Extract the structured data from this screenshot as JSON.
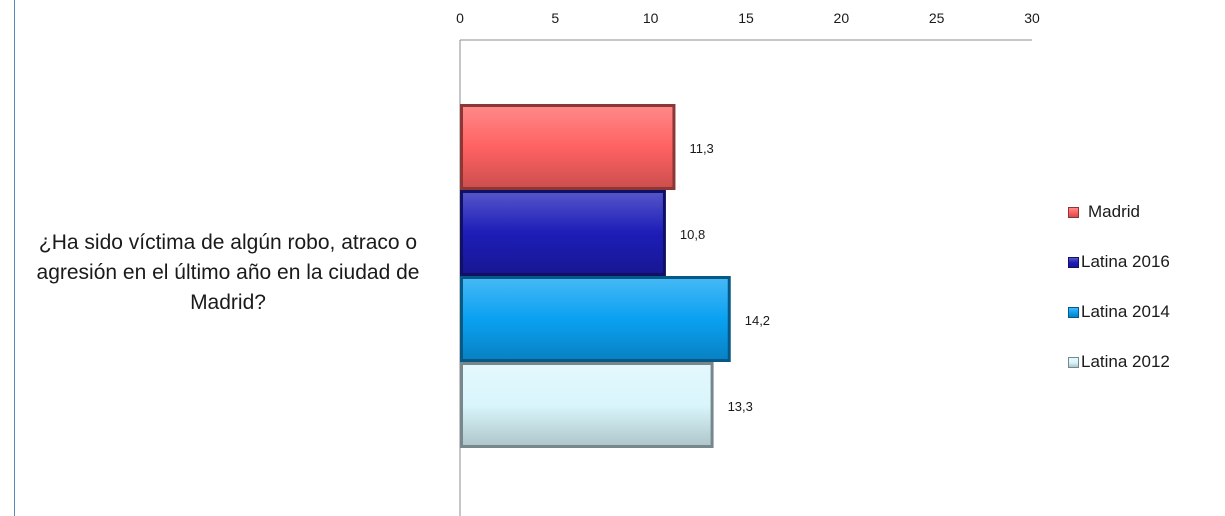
{
  "chart_data": {
    "type": "bar",
    "orientation": "horizontal",
    "categories": [
      "¿Ha sido víctima de algún robo, atraco o agresión en el último año en la ciudad de Madrid?"
    ],
    "series": [
      {
        "name": "Madrid",
        "values": [
          11.3
        ],
        "label": "11,3",
        "color": "#ff6262"
      },
      {
        "name": "Latina 2016",
        "values": [
          10.8
        ],
        "label": "10,8",
        "color": "#1d1db8"
      },
      {
        "name": "Latina 2014",
        "values": [
          14.2
        ],
        "label": "14,2",
        "color": "#0aa1f2"
      },
      {
        "name": "Latina 2012",
        "values": [
          13.3
        ],
        "label": "13,3",
        "color": "#d9f6fc"
      }
    ],
    "xaxis": {
      "position": "top",
      "ticks": [
        "0",
        "5",
        "10",
        "15",
        "20",
        "25",
        "30"
      ],
      "xlim": [
        0,
        30
      ]
    },
    "title": "",
    "xlabel": "",
    "ylabel": "",
    "grid": false,
    "legend": "right"
  }
}
